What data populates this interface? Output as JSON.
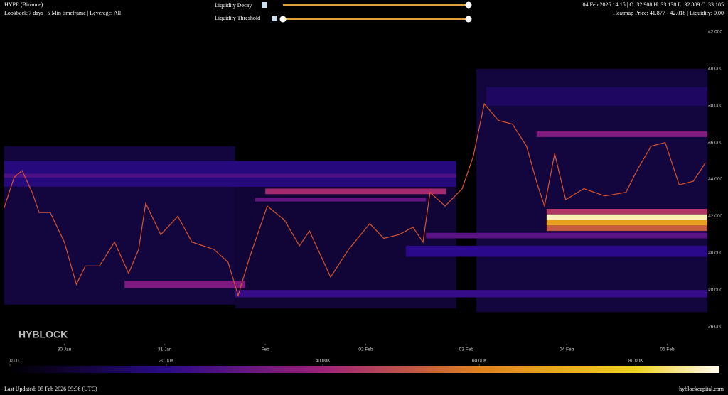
{
  "chart_data": {
    "type": "heatmap",
    "title": "HYPE (Binance)",
    "subtitle": "Lookback:7 days | 5 Min timeframe | Leverage: All",
    "ohlc_text": "04 Feb 2026 14:15 | O: 32.908 H: 33.138 L: 32.809 C: 33.105",
    "heatmap_text": "Heatmap Price: 41.877 - 42.018 | Liquidity: 0.00",
    "controls": [
      "Liquidity Decay",
      "Liquidity Threshold"
    ],
    "watermark": "HYBLOCK",
    "footer_left": "Last Updated: 05 Feb 2026 09:36 (UTC)",
    "footer_right": "hyblockcapital.com",
    "xlim": [
      29.36,
      36.4
    ],
    "xticks": [
      {
        "value": 30,
        "label": "30 Jan"
      },
      {
        "value": 31,
        "label": "31 Jan"
      },
      {
        "value": 32,
        "label": "Feb"
      },
      {
        "value": 33,
        "label": "02 Feb"
      },
      {
        "value": 34,
        "label": "03 Feb"
      },
      {
        "value": 35,
        "label": "04 Feb"
      },
      {
        "value": 36,
        "label": "05 Feb"
      }
    ],
    "ylim": [
      26,
      42
    ],
    "yticks": [
      {
        "value": 26,
        "label": "26.000"
      },
      {
        "value": 28,
        "label": "28.000"
      },
      {
        "value": 30,
        "label": "30.000"
      },
      {
        "value": 32,
        "label": "32.000"
      },
      {
        "value": 34,
        "label": "34.000"
      },
      {
        "value": 36,
        "label": "36.000"
      },
      {
        "value": 38,
        "label": "38.000"
      },
      {
        "value": 40,
        "label": "40.000"
      },
      {
        "value": 42,
        "label": "42.000"
      }
    ],
    "price": {
      "color": "#d9532b",
      "x": [
        29.4,
        29.5,
        29.58,
        29.68,
        29.75,
        29.86,
        30.0,
        30.12,
        30.21,
        30.35,
        30.5,
        30.64,
        30.74,
        30.81,
        30.96,
        31.13,
        31.27,
        31.49,
        31.63,
        31.73,
        31.84,
        32.02,
        32.19,
        32.34,
        32.44,
        32.65,
        32.83,
        33.04,
        33.18,
        33.33,
        33.47,
        33.57,
        33.64,
        33.79,
        33.96,
        34.07,
        34.18,
        34.32,
        34.46,
        34.6,
        34.71,
        34.78,
        34.88,
        34.99,
        35.17,
        35.38,
        35.59,
        35.7,
        35.84,
        35.98,
        36.12,
        36.26,
        36.38
      ],
      "values": [
        32.44,
        34.1,
        34.48,
        33.3,
        32.2,
        32.2,
        30.6,
        28.3,
        29.3,
        29.3,
        30.6,
        28.9,
        30.2,
        32.7,
        31.0,
        32.0,
        30.6,
        30.2,
        29.5,
        27.7,
        29.7,
        32.55,
        31.8,
        30.4,
        31.2,
        28.7,
        30.2,
        31.6,
        30.8,
        31.0,
        31.4,
        30.6,
        33.3,
        32.55,
        33.5,
        35.25,
        38.1,
        37.2,
        37.0,
        35.8,
        33.7,
        32.55,
        35.4,
        32.9,
        33.5,
        33.1,
        33.3,
        34.5,
        35.8,
        36.0,
        33.7,
        33.9,
        34.9
      ]
    },
    "bands": [
      {
        "price_low": 27.2,
        "price_high": 35.8,
        "start": 29.4,
        "end": 31.7,
        "value": 9000
      },
      {
        "price_low": 27.0,
        "price_high": 35.0,
        "start": 31.7,
        "end": 33.9,
        "value": 8000
      },
      {
        "price_low": 26.8,
        "price_high": 40.0,
        "start": 34.1,
        "end": 36.4,
        "value": 9000
      },
      {
        "price_low": 33.6,
        "price_high": 35.0,
        "start": 29.4,
        "end": 33.9,
        "value": 18000
      },
      {
        "price_low": 34.1,
        "price_high": 34.3,
        "start": 29.4,
        "end": 33.9,
        "value": 26000
      },
      {
        "price_low": 32.8,
        "price_high": 33.0,
        "start": 31.9,
        "end": 33.6,
        "value": 30000
      },
      {
        "price_low": 33.2,
        "price_high": 33.5,
        "start": 32.0,
        "end": 33.8,
        "value": 42000
      },
      {
        "price_low": 28.1,
        "price_high": 28.5,
        "start": 30.6,
        "end": 31.8,
        "value": 34000
      },
      {
        "price_low": 27.6,
        "price_high": 28.0,
        "start": 31.7,
        "end": 36.4,
        "value": 22000
      },
      {
        "price_low": 29.8,
        "price_high": 30.4,
        "start": 33.4,
        "end": 36.4,
        "value": 20000
      },
      {
        "price_low": 30.8,
        "price_high": 31.1,
        "start": 33.6,
        "end": 36.4,
        "value": 28000
      },
      {
        "price_low": 38.0,
        "price_high": 39.0,
        "start": 34.2,
        "end": 36.4,
        "value": 14000
      },
      {
        "price_low": 36.3,
        "price_high": 36.6,
        "start": 34.7,
        "end": 36.4,
        "value": 35000
      },
      {
        "price_low": 32.1,
        "price_high": 32.4,
        "start": 34.8,
        "end": 36.4,
        "value": 45000
      },
      {
        "price_low": 31.2,
        "price_high": 31.5,
        "start": 34.8,
        "end": 36.4,
        "value": 52000
      },
      {
        "price_low": 31.5,
        "price_high": 31.8,
        "start": 34.8,
        "end": 36.4,
        "value": 68000
      },
      {
        "price_low": 31.8,
        "price_high": 32.1,
        "start": 34.8,
        "end": 36.4,
        "value": 88000
      }
    ],
    "colorscale": [
      [
        0,
        "#000000"
      ],
      [
        20000,
        "#2a0a8a"
      ],
      [
        40000,
        "#a0207a"
      ],
      [
        60000,
        "#e0801a"
      ],
      [
        80000,
        "#f0d020"
      ],
      [
        90000,
        "#fff8e0"
      ]
    ],
    "colorbar_lim": [
      0,
      90700
    ],
    "colorbar_ticks": [
      {
        "value": 0,
        "label": "0.00"
      },
      {
        "value": 20000,
        "label": "20.00K"
      },
      {
        "value": 40000,
        "label": "40.00K"
      },
      {
        "value": 60000,
        "label": "60.00K"
      },
      {
        "value": 80000,
        "label": "80.00K"
      }
    ]
  }
}
